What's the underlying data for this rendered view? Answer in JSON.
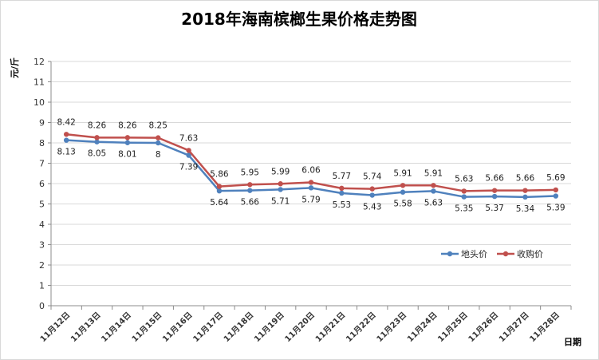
{
  "chart_data": {
    "type": "line",
    "title": "2018年海南槟榔生果价格走势图",
    "xlabel": "日期",
    "ylabel": "元/斤",
    "ylim": [
      0,
      12
    ],
    "yticks": [
      0,
      1,
      2,
      3,
      4,
      5,
      6,
      7,
      8,
      9,
      10,
      11,
      12
    ],
    "grid": true,
    "legend_position": "right",
    "categories": [
      "11月12日",
      "11月13日",
      "11月14日",
      "11月15日",
      "11月16日",
      "11月17日",
      "11月18日",
      "11月19日",
      "11月20日",
      "11月21日",
      "11月22日",
      "11月23日",
      "11月24日",
      "11月25日",
      "11月26日",
      "11月27日",
      "11月28日"
    ],
    "series": [
      {
        "name": "地头价",
        "color": "#4f81bd",
        "values": [
          8.13,
          8.05,
          8.01,
          8.0,
          7.39,
          5.64,
          5.66,
          5.71,
          5.79,
          5.53,
          5.43,
          5.58,
          5.63,
          5.35,
          5.37,
          5.34,
          5.39
        ]
      },
      {
        "name": "收购价",
        "color": "#c0504d",
        "values": [
          8.42,
          8.26,
          8.26,
          8.25,
          7.63,
          5.86,
          5.95,
          5.99,
          6.06,
          5.77,
          5.74,
          5.91,
          5.91,
          5.63,
          5.66,
          5.66,
          5.69
        ]
      }
    ]
  }
}
